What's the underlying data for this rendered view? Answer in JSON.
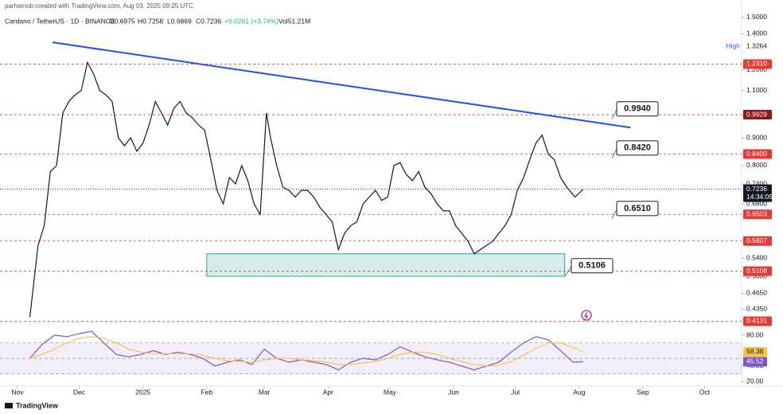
{
  "header": {
    "credit": "parhamnb created with TradingView.com, Aug 03, 2025 09:25 UTC",
    "symbol": "Cardano / TetherUS · 1D · BINANCE",
    "open": "O0.6975",
    "high": "H0.7258",
    "low": "L0.6869",
    "close": "C0.7236",
    "change": "+0.0261 (+3.74%)",
    "volume": "Vol51.21M"
  },
  "footer": {
    "brand": "TradingView"
  },
  "chart_data": [
    {
      "type": "line",
      "log_scale": true,
      "color": "#131722",
      "x": [
        6,
        10,
        13,
        16,
        19,
        22,
        25,
        28,
        31,
        34,
        37,
        40,
        43,
        46,
        49,
        52,
        55,
        58,
        61,
        64,
        67,
        70,
        73,
        76,
        79,
        82,
        85,
        88,
        91,
        94,
        97,
        100,
        103,
        106,
        109,
        112,
        115,
        118,
        121,
        123,
        126,
        129,
        132,
        135,
        138,
        141,
        144,
        147,
        150,
        153,
        156,
        159,
        162,
        165,
        168,
        171,
        174,
        177,
        180,
        183,
        186,
        189,
        192,
        195,
        198,
        201,
        204,
        207,
        210,
        213,
        216,
        219,
        222,
        225,
        228,
        231,
        234,
        237,
        240,
        243,
        246,
        249,
        252,
        255,
        258,
        261,
        264,
        267,
        271,
        275
      ],
      "values": [
        0.42,
        0.57,
        0.62,
        0.78,
        0.8,
        1.0,
        1.05,
        1.08,
        1.1,
        1.24,
        1.18,
        1.1,
        1.08,
        1.05,
        0.9,
        0.87,
        0.9,
        0.85,
        0.88,
        0.95,
        1.05,
        1.0,
        0.95,
        1.02,
        1.05,
        1.0,
        0.98,
        0.95,
        0.93,
        0.82,
        0.72,
        0.68,
        0.76,
        0.74,
        0.8,
        0.75,
        0.68,
        0.65,
        1.0,
        0.9,
        0.8,
        0.73,
        0.72,
        0.7,
        0.72,
        0.72,
        0.7,
        0.67,
        0.65,
        0.63,
        0.56,
        0.6,
        0.62,
        0.63,
        0.68,
        0.7,
        0.72,
        0.69,
        0.7,
        0.8,
        0.81,
        0.77,
        0.75,
        0.78,
        0.73,
        0.71,
        0.68,
        0.66,
        0.66,
        0.62,
        0.6,
        0.58,
        0.55,
        0.56,
        0.57,
        0.58,
        0.6,
        0.62,
        0.65,
        0.72,
        0.76,
        0.82,
        0.88,
        0.91,
        0.84,
        0.82,
        0.76,
        0.73,
        0.7,
        0.7236
      ],
      "xlim": [
        -8.5,
        352
      ],
      "ylim": [
        0.411,
        1.562
      ],
      "xticks": [
        {
          "value": 0,
          "label": "Nov"
        },
        {
          "value": 30,
          "label": "Dec"
        },
        {
          "value": 61,
          "label": "2025"
        },
        {
          "value": 92,
          "label": "Feb"
        },
        {
          "value": 120,
          "label": "Mar"
        },
        {
          "value": 151,
          "label": "Apr"
        },
        {
          "value": 181,
          "label": "May"
        },
        {
          "value": 212,
          "label": "Jun"
        },
        {
          "value": 242,
          "label": "Jul"
        },
        {
          "value": 273,
          "label": "Aug"
        },
        {
          "value": 304,
          "label": "Sep"
        },
        {
          "value": 334,
          "label": "Oct"
        }
      ],
      "yticks": [
        {
          "value": 1.5,
          "label": "1.5000"
        },
        {
          "value": 1.4,
          "label": "1.4000"
        },
        {
          "value": 1.2,
          "label": "1.2000"
        },
        {
          "value": 1.1,
          "label": "1.1000"
        },
        {
          "value": 0.9,
          "label": "0.9000"
        },
        {
          "value": 0.8,
          "label": "0.8000"
        },
        {
          "value": 0.74,
          "label": "0.7400"
        },
        {
          "value": 0.68,
          "label": "0.6800"
        },
        {
          "value": 0.54,
          "label": "0.5400"
        },
        {
          "value": 0.5,
          "label": "0.5000"
        },
        {
          "value": 0.465,
          "label": "0.4650"
        },
        {
          "value": 0.435,
          "label": "0.4350"
        }
      ],
      "levels": [
        {
          "value": 1.231,
          "label": "1.2310"
        },
        0.9929,
        {
          "value": 0.84,
          "label": "0.8400"
        },
        0.6503,
        0.5807,
        0.5108,
        0.4131
      ],
      "level_color": "#e53935",
      "high": {
        "title": "High",
        "value": 1.3264
      },
      "countdown": "14:34:05",
      "trendline": {
        "x": [
          17,
          298
        ],
        "values": [
          1.35,
          0.94
        ],
        "color": "#1e53e5"
      },
      "range_box": {
        "x": [
          92,
          266
        ],
        "values": [
          0.5,
          0.55
        ],
        "color": "#26a69a"
      },
      "annotations": [
        {
          "value": 0.994,
          "label": "0.9940"
        },
        {
          "value": 0.842,
          "label": "0.8420"
        },
        {
          "value": 0.651,
          "label": "0.6510"
        },
        0.5106
      ]
    },
    {
      "type": "line",
      "series": [
        {
          "color": "#7e57c2",
          "values": [
            50,
            68,
            80,
            78,
            82,
            85,
            70,
            55,
            52,
            55,
            60,
            55,
            58,
            55,
            50,
            40,
            45,
            48,
            42,
            62,
            50,
            45,
            48,
            45,
            42,
            35,
            45,
            50,
            48,
            55,
            65,
            58,
            52,
            48,
            45,
            40,
            35,
            40,
            45,
            58,
            70,
            78,
            74,
            60,
            45,
            45.52
          ]
        },
        {
          "color": "#f5c542",
          "values": [
            50,
            55,
            62,
            70,
            76,
            78,
            76,
            70,
            62,
            58,
            56,
            56,
            56,
            56,
            54,
            50,
            47,
            46,
            45,
            48,
            50,
            50,
            48,
            47,
            45,
            42,
            42,
            44,
            46,
            50,
            55,
            58,
            58,
            55,
            50,
            46,
            42,
            40,
            41,
            46,
            54,
            63,
            70,
            70,
            64,
            58.38
          ]
        }
      ],
      "x": [
        6,
        12,
        18,
        24,
        30,
        36,
        42,
        48,
        54,
        60,
        66,
        72,
        78,
        84,
        90,
        96,
        102,
        108,
        114,
        120,
        126,
        132,
        138,
        144,
        150,
        156,
        162,
        168,
        174,
        180,
        186,
        192,
        198,
        204,
        210,
        216,
        222,
        228,
        234,
        240,
        246,
        252,
        258,
        264,
        270,
        275
      ],
      "xlim": [
        -8.5,
        352
      ],
      "ylim": [
        14,
        96.5
      ],
      "yticks": [
        {
          "value": 80,
          "label": "80.00"
        },
        {
          "value": 40,
          "label": "40.00"
        },
        {
          "value": 20,
          "label": "20.00"
        }
      ],
      "levels": [
        70,
        50,
        30
      ]
    }
  ]
}
